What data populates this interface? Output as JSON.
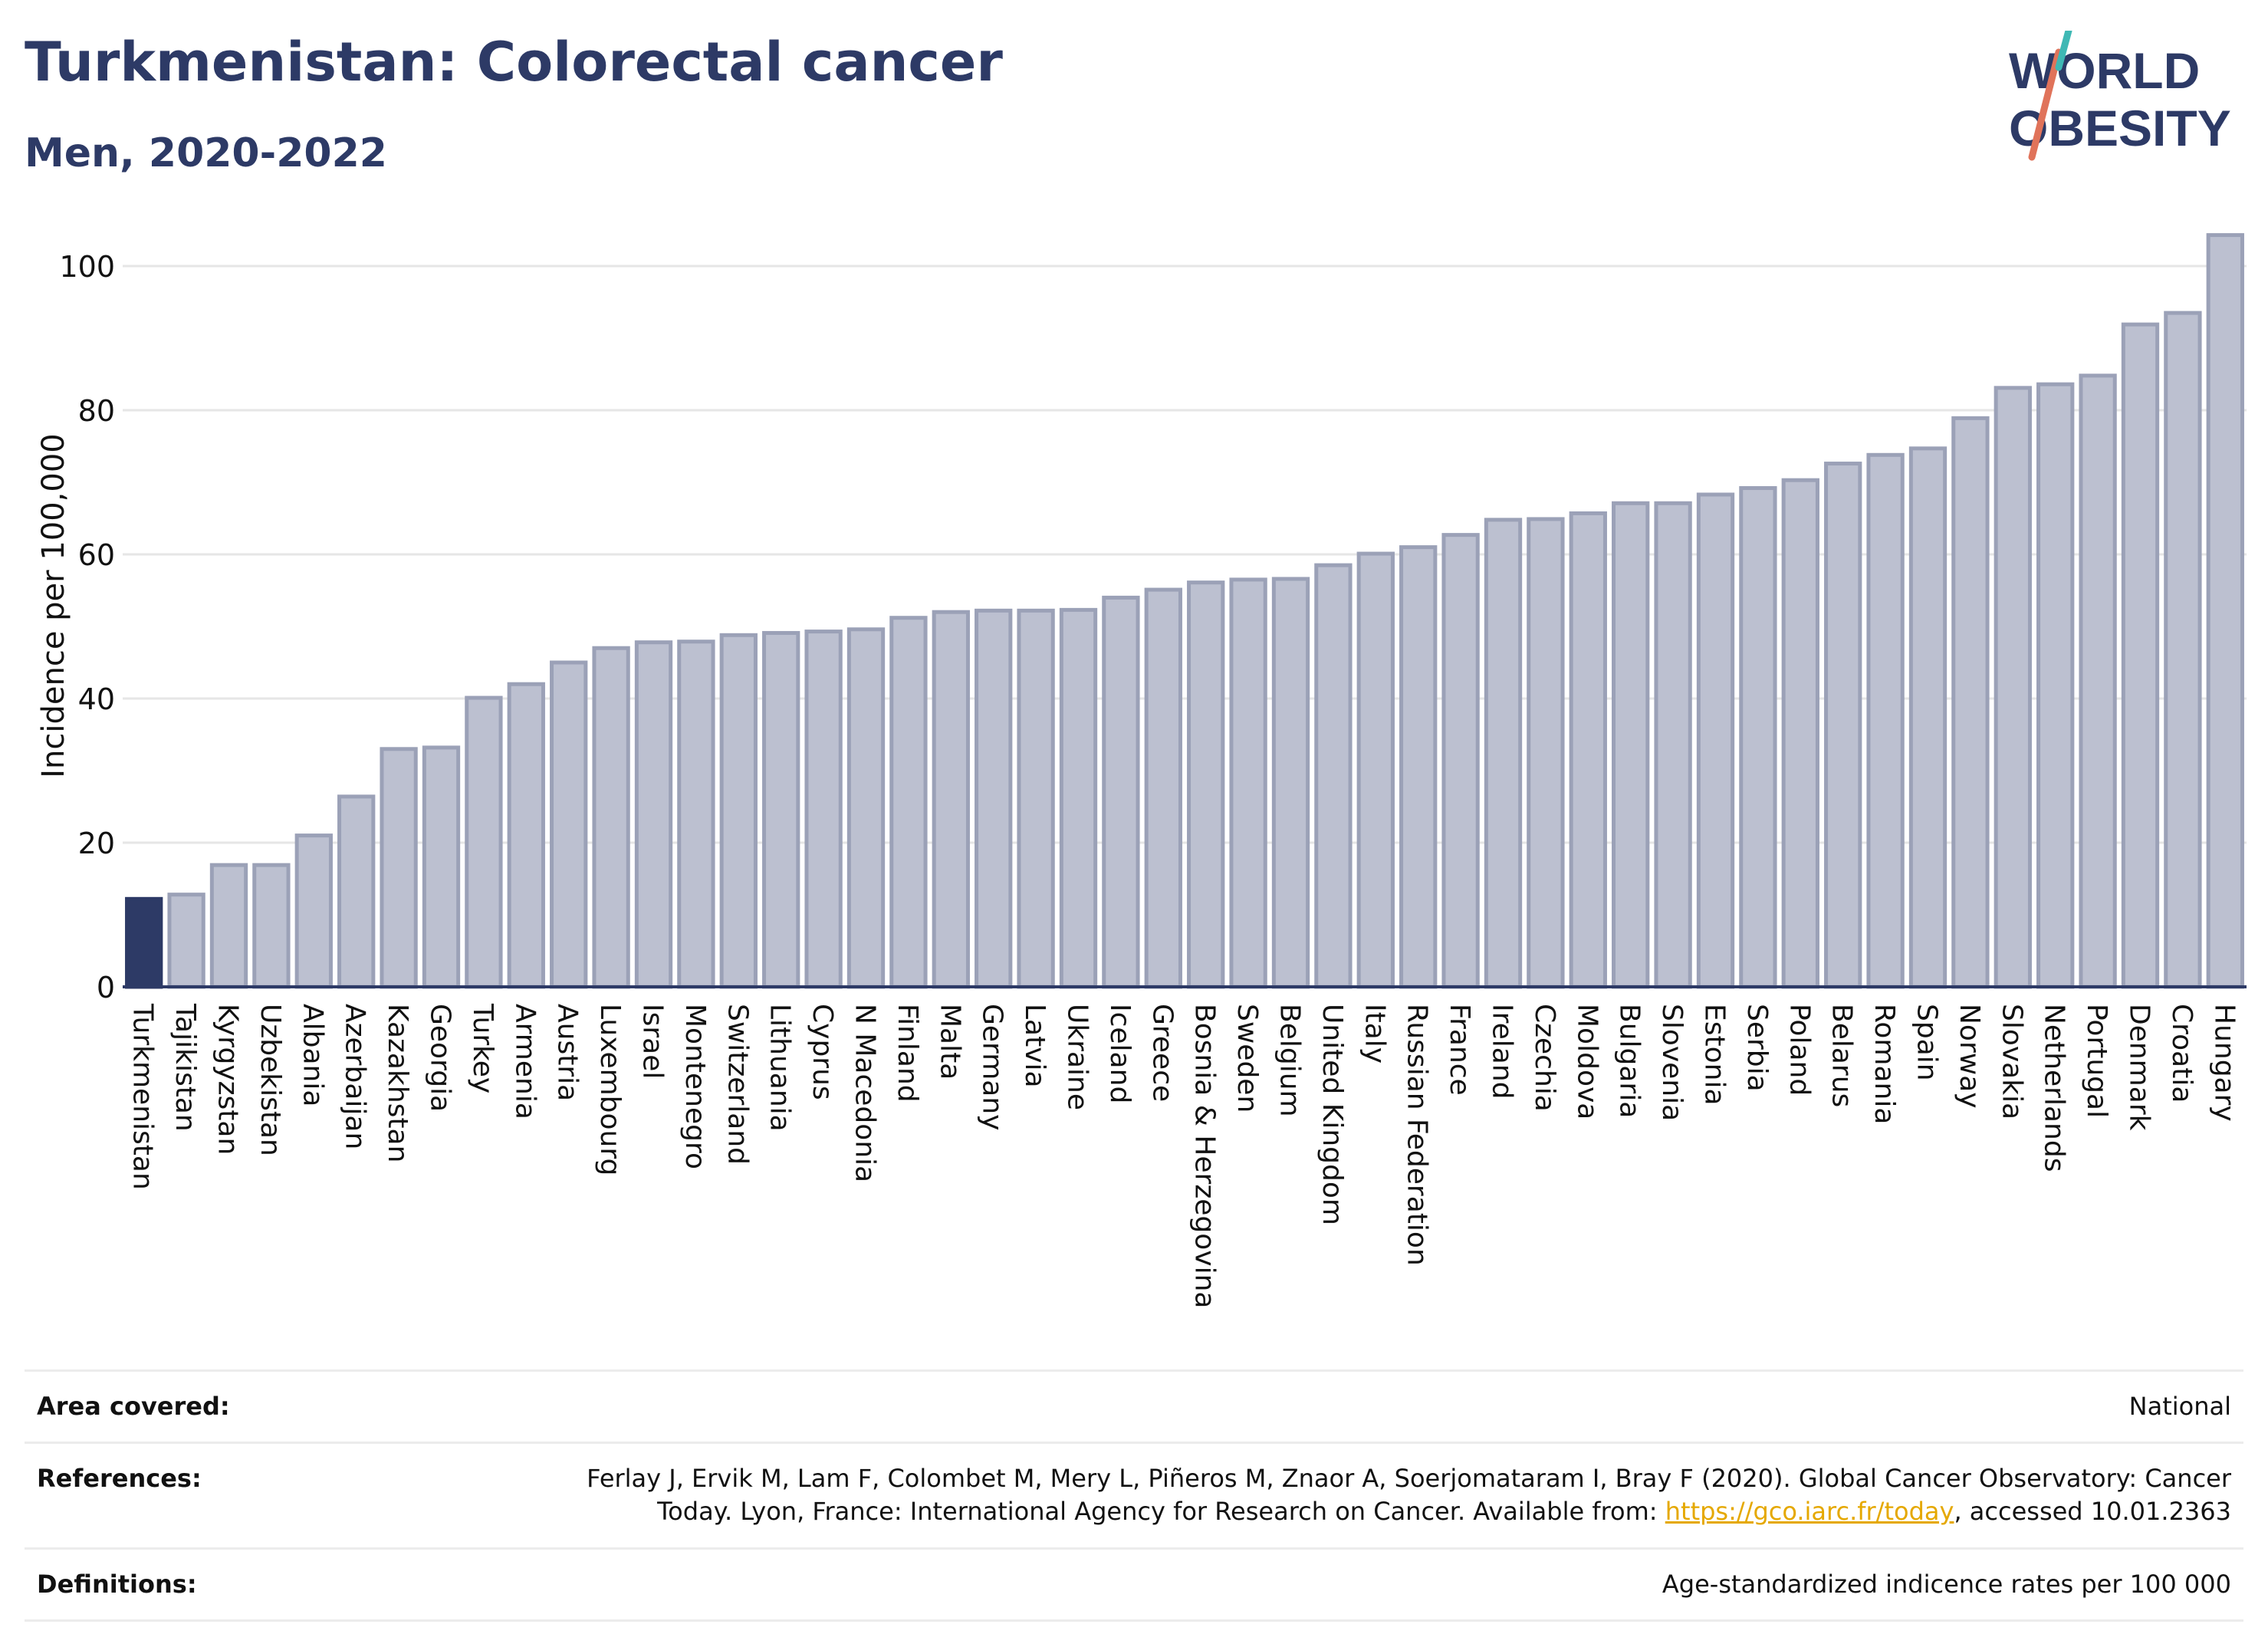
{
  "title": "Turkmenistan: Colorectal cancer",
  "subtitle": "Men, 2020-2022",
  "logo": {
    "line1": "WORLD",
    "line2": "OBESITY"
  },
  "colors": {
    "highlight": "#2d3a66",
    "bar_fill": "#bcc0d0",
    "bar_stroke": "#9ba1b7",
    "title": "#2d3a66",
    "grid": "#e6e6e6",
    "link": "#e5a800"
  },
  "chart_data": {
    "type": "bar",
    "title": "Turkmenistan: Colorectal cancer",
    "subtitle": "Men, 2020-2022",
    "xlabel": "",
    "ylabel": "Incidence per 100,000",
    "ylim": [
      0,
      105
    ],
    "yticks": [
      0,
      20,
      40,
      60,
      80,
      100
    ],
    "grid": true,
    "highlight": "Turkmenistan",
    "categories": [
      "Turkmenistan",
      "Tajikistan",
      "Kyrgyzstan",
      "Uzbekistan",
      "Albania",
      "Azerbaijan",
      "Kazakhstan",
      "Georgia",
      "Turkey",
      "Armenia",
      "Austria",
      "Luxembourg",
      "Israel",
      "Montenegro",
      "Switzerland",
      "Lithuania",
      "Cyprus",
      "N Macedonia",
      "Finland",
      "Malta",
      "Germany",
      "Latvia",
      "Ukraine",
      "Iceland",
      "Greece",
      "Bosnia & Herzegovina",
      "Sweden",
      "Belgium",
      "United Kingdom",
      "Italy",
      "Russian Federation",
      "France",
      "Ireland",
      "Czechia",
      "Moldova",
      "Bulgaria",
      "Slovenia",
      "Estonia",
      "Serbia",
      "Poland",
      "Belarus",
      "Romania",
      "Spain",
      "Norway",
      "Slovakia",
      "Netherlands",
      "Portugal",
      "Denmark",
      "Croatia",
      "Hungary"
    ],
    "values": [
      12.2,
      12.8,
      16.9,
      16.9,
      21.0,
      26.4,
      33.0,
      33.2,
      40.1,
      42.0,
      45.0,
      47.0,
      47.8,
      47.9,
      48.8,
      49.1,
      49.3,
      49.6,
      51.2,
      52.0,
      52.2,
      52.2,
      52.3,
      54.0,
      55.1,
      56.1,
      56.5,
      56.6,
      58.5,
      60.1,
      61.0,
      62.7,
      64.8,
      64.9,
      65.7,
      67.1,
      67.1,
      68.3,
      69.2,
      70.3,
      72.6,
      73.8,
      74.7,
      78.9,
      83.1,
      83.6,
      84.8,
      91.9,
      93.5,
      104.3
    ]
  },
  "meta": {
    "area_label": "Area covered:",
    "area_value": "National",
    "ref_label": "References:",
    "ref_line1": "Ferlay J, Ervik M, Lam F, Colombet M, Mery L, Piñeros M, Znaor A, Soerjomataram I, Bray F (2020). Global Cancer Observatory: Cancer",
    "ref_line2_before": "Today. Lyon, France: International Agency for Research on Cancer. Available from: ",
    "ref_link": "https://gco.iarc.fr/today",
    "ref_line2_after": ", accessed 10.01.2363",
    "def_label": "Definitions:",
    "def_value": "Age-standardized indicence rates per 100 000"
  }
}
